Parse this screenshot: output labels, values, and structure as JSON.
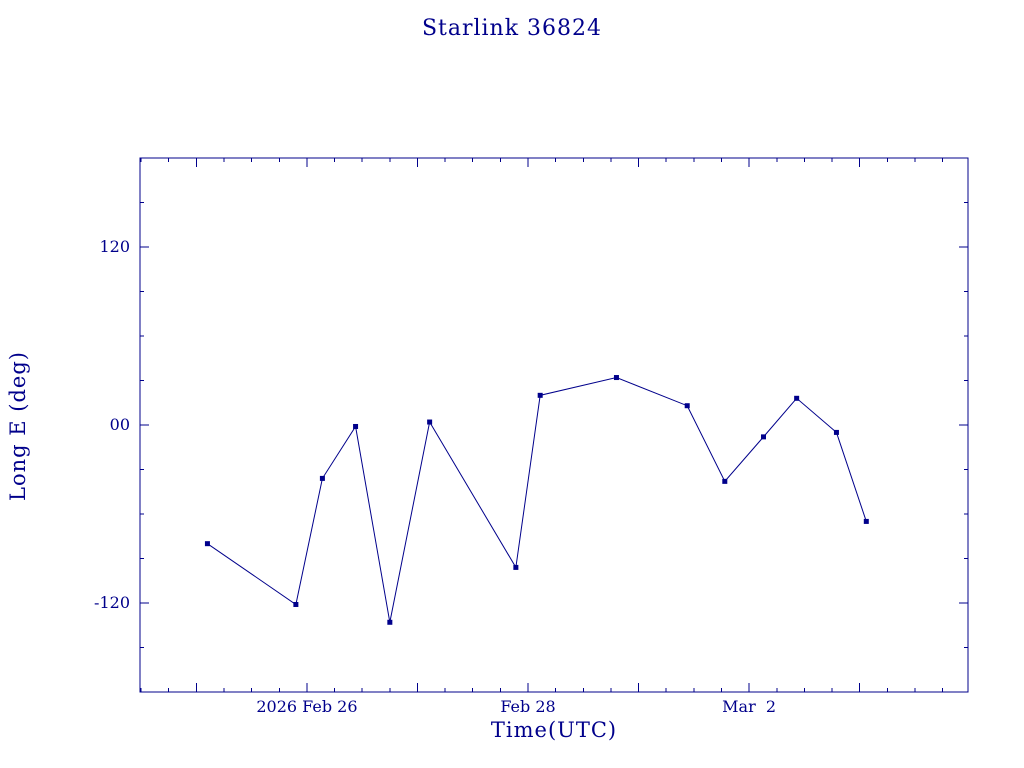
{
  "page": {
    "background": "#ffffff"
  },
  "chart_data": {
    "type": "line",
    "title": "Starlink 36824",
    "xlabel": "Time(UTC)",
    "ylabel": "Long E (deg)",
    "line_color": "#00008b",
    "marker": "filled-square",
    "grid": false,
    "x_axis_note": "days relative to 2026 Feb 26 00:00 UTC",
    "xlim": [
      -1.51,
      5.98
    ],
    "ylim": [
      -180,
      180
    ],
    "x_minor_step": 0.25,
    "x_major_step": 1,
    "y_minor_step": 30,
    "y_major_step": 120,
    "xticks": [
      {
        "value": 0,
        "label": "2026 Feb 26"
      },
      {
        "value": 2,
        "label": "Feb 28"
      },
      {
        "value": 4,
        "label": "Mar  2"
      }
    ],
    "yticks": [
      {
        "value": 120,
        "label": "120"
      },
      {
        "value": 0,
        "label": "00"
      },
      {
        "value": -120,
        "label": "-120"
      }
    ],
    "x": [
      -0.9,
      -0.1,
      0.14,
      0.44,
      0.75,
      1.11,
      1.89,
      2.11,
      2.8,
      3.44,
      3.78,
      4.13,
      4.43,
      4.79,
      5.06
    ],
    "y": [
      -80,
      -121,
      -36,
      -1,
      -133,
      2,
      -96,
      20,
      32,
      13,
      -38,
      -8,
      18,
      -5,
      -65
    ]
  }
}
